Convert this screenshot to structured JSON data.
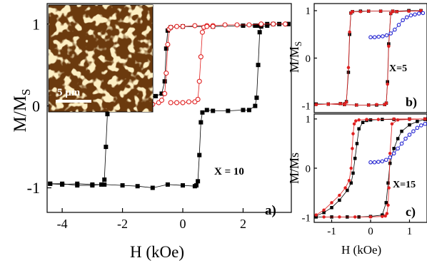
{
  "chart_data": [
    {
      "id": "a",
      "type": "scatter",
      "panel_label": "a)",
      "annotation": "X = 10",
      "xlabel": "H (kOe)",
      "ylabel": "M/M",
      "ylabel_sub": "S",
      "xlim": [
        -4.5,
        3.6
      ],
      "ylim": [
        -1.3,
        1.25
      ],
      "xticks": [
        -4,
        -2,
        0,
        2
      ],
      "xtick_labels": [
        "-4",
        "-2",
        "0",
        "2"
      ],
      "yticks": [
        -1,
        0,
        1
      ],
      "ytick_labels": [
        "-1",
        "0",
        "1"
      ],
      "inset": {
        "description": "AFM",
        "scale_bar_label": "5 μm"
      },
      "series": [
        {
          "style": "filled-square",
          "color": "#000000",
          "x": [
            -4.4,
            -4.0,
            -3.5,
            -3.0,
            -2.7,
            -2.6,
            -2.55,
            -2.5,
            -2.45,
            -2.4,
            -2.2,
            -2.0,
            -1.5,
            -1.2,
            -0.9,
            -0.7,
            -0.6,
            -0.55,
            -0.5,
            -0.4,
            0,
            1,
            2,
            2.4,
            2.5,
            2.55,
            2.6,
            2.8,
            3.2,
            3.5
          ],
          "y": [
            -0.95,
            -0.95,
            -0.97,
            -0.97,
            -0.96,
            -0.9,
            -0.5,
            -0.1,
            0.03,
            0.06,
            0.06,
            0.06,
            0.05,
            0.1,
            0.12,
            0.15,
            0.3,
            0.7,
            0.92,
            0.96,
            0.97,
            0.97,
            0.98,
            0.98,
            0.98,
            0.98,
            0.99,
            1.0,
            1.0,
            1.0
          ]
        },
        {
          "style": "filled-square",
          "color": "#000000",
          "x": [
            3.5,
            3.0,
            2.8,
            2.6,
            2.55,
            2.5,
            2.45,
            2.4,
            2.2,
            2.0,
            1.5,
            1.0,
            0.8,
            0.65,
            0.6,
            0.55,
            0.5,
            0.45,
            0.4,
            0,
            -0.5,
            -1.0,
            -1.5,
            -2.0,
            -2.6,
            -3.0,
            -3.5,
            -4.0,
            -4.4
          ],
          "y": [
            1.0,
            1.0,
            0.98,
            0.97,
            0.9,
            0.5,
            0.1,
            0.0,
            -0.05,
            -0.05,
            -0.06,
            -0.06,
            -0.05,
            -0.08,
            -0.2,
            -0.6,
            -0.92,
            -0.97,
            -0.98,
            -0.97,
            -0.96,
            -1.0,
            -0.98,
            -0.97,
            -0.96,
            -0.96,
            -0.95,
            -0.96,
            -0.95
          ]
        },
        {
          "style": "open-circle",
          "color": "#e02020",
          "x": [
            -1.5,
            -1.2,
            -1.0,
            -0.8,
            -0.7,
            -0.6,
            -0.55,
            -0.5,
            -0.45,
            -0.4,
            -0.2,
            0,
            0.4,
            0.8,
            1.0,
            1.4,
            1.8,
            2.2,
            2.6,
            3.0,
            3.4
          ],
          "y": [
            0.01,
            0.02,
            0.02,
            0.04,
            0.07,
            0.15,
            0.4,
            0.75,
            0.94,
            0.96,
            0.97,
            0.97,
            0.98,
            0.98,
            0.98,
            0.99,
            0.99,
            0.99,
            1.0,
            1.0,
            1.0
          ]
        },
        {
          "style": "open-circle",
          "color": "#e02020",
          "x": [
            -0.4,
            -0.2,
            0,
            0.2,
            0.4,
            0.5,
            0.55,
            0.6,
            0.65,
            0.7,
            0.8,
            1.0
          ],
          "y": [
            0.04,
            0.04,
            0.04,
            0.05,
            0.05,
            0.08,
            0.3,
            0.6,
            0.9,
            0.96,
            0.97,
            0.97
          ]
        }
      ]
    },
    {
      "id": "b",
      "type": "scatter",
      "panel_label": "b)",
      "annotation": "X=5",
      "ylabel": "M/M",
      "ylabel_sub": "S",
      "xlim": [
        -1.35,
        1.45
      ],
      "ylim": [
        -1.15,
        1.15
      ],
      "yticks": [
        -1,
        0,
        1
      ],
      "ytick_labels": [
        "-1",
        "0",
        "1"
      ],
      "series": [
        {
          "style": "filled-square",
          "color": "#000000",
          "x": [
            -1.3,
            -1.0,
            -0.7,
            -0.55,
            -0.5,
            -0.47,
            -0.44,
            -0.4,
            -0.2,
            0,
            0.3,
            0.6,
            1.0,
            1.3
          ],
          "y": [
            -0.97,
            -0.97,
            -0.96,
            -0.92,
            -0.3,
            0.5,
            0.95,
            0.98,
            0.99,
            0.99,
            0.99,
            0.99,
            1.0,
            1.0
          ]
        },
        {
          "style": "filled-square",
          "color": "#000000",
          "x": [
            1.3,
            1.0,
            0.7,
            0.55,
            0.5,
            0.47,
            0.44,
            0.4,
            0.2,
            0,
            -0.3,
            -0.6,
            -1.0,
            -1.3
          ],
          "y": [
            1.0,
            1.0,
            0.98,
            0.94,
            0.3,
            -0.5,
            -0.95,
            -0.98,
            -0.99,
            -0.99,
            -0.99,
            -0.98,
            -0.97,
            -0.97
          ]
        },
        {
          "style": "filled-circle",
          "color": "#e02020",
          "x": [
            -1.3,
            -1.0,
            -0.7,
            -0.55,
            -0.5,
            -0.47,
            -0.44,
            -0.4,
            -0.2,
            0,
            0.3,
            0.6,
            1.0,
            1.3
          ],
          "y": [
            -0.98,
            -0.97,
            -0.96,
            -0.93,
            -0.2,
            0.55,
            0.95,
            0.98,
            0.98,
            0.99,
            0.99,
            0.99,
            0.99,
            1.0
          ]
        },
        {
          "style": "filled-circle",
          "color": "#e02020",
          "x": [
            1.3,
            1.0,
            0.7,
            0.55,
            0.5,
            0.47,
            0.44,
            0.4,
            0.2,
            0,
            -0.3,
            -0.6,
            -1.0,
            -1.3
          ],
          "y": [
            0.99,
            0.99,
            0.98,
            0.94,
            0.25,
            -0.55,
            -0.95,
            -0.98,
            -0.98,
            -0.99,
            -0.99,
            -0.98,
            -0.97,
            -0.98
          ]
        },
        {
          "style": "open-circle",
          "color": "#2020d0",
          "x": [
            0.05,
            0.15,
            0.25,
            0.35,
            0.45,
            0.55,
            0.65,
            0.75,
            0.85,
            0.95,
            1.05,
            1.15,
            1.25,
            1.35
          ],
          "y": [
            0.44,
            0.44,
            0.45,
            0.46,
            0.48,
            0.52,
            0.6,
            0.7,
            0.8,
            0.86,
            0.9,
            0.92,
            0.94,
            0.95
          ]
        }
      ]
    },
    {
      "id": "c",
      "type": "scatter",
      "panel_label": "c)",
      "annotation": "X=15",
      "xlabel": "H (kOe)",
      "ylabel": "M/Ms",
      "xlim": [
        -1.45,
        1.45
      ],
      "ylim": [
        -1.1,
        1.1
      ],
      "xticks": [
        -1,
        0,
        1
      ],
      "xtick_labels": [
        "-1",
        "0",
        "1"
      ],
      "yticks": [
        -1,
        0,
        1
      ],
      "ytick_labels": [
        "-1",
        "0",
        "1"
      ],
      "series": [
        {
          "style": "filled-square",
          "color": "#000000",
          "x": [
            -1.4,
            -1.2,
            -1.0,
            -0.8,
            -0.6,
            -0.5,
            -0.45,
            -0.4,
            -0.35,
            -0.3,
            -0.2,
            -0.1,
            0,
            0.3,
            0.6,
            1.0,
            1.4
          ],
          "y": [
            -0.97,
            -0.9,
            -0.8,
            -0.65,
            -0.45,
            -0.3,
            -0.1,
            0.2,
            0.5,
            0.8,
            0.93,
            0.97,
            0.98,
            0.99,
            0.99,
            1.0,
            1.0
          ]
        },
        {
          "style": "filled-square",
          "color": "#000000",
          "x": [
            1.4,
            1.2,
            1.0,
            0.8,
            0.7,
            0.6,
            0.5,
            0.45,
            0.4,
            0.3,
            0,
            -0.3,
            -0.6,
            -1.0,
            -1.4
          ],
          "y": [
            0.99,
            0.95,
            0.88,
            0.75,
            0.6,
            0.4,
            0.1,
            -0.3,
            -0.7,
            -0.95,
            -0.98,
            -0.99,
            -0.99,
            -0.99,
            -0.99
          ]
        },
        {
          "style": "filled-circle",
          "color": "#e02020",
          "x": [
            -1.4,
            -1.2,
            -1.0,
            -0.8,
            -0.65,
            -0.55,
            -0.5,
            -0.47,
            -0.45,
            -0.42,
            -0.38,
            -0.3,
            -0.1,
            0.2,
            0.6,
            1.0,
            1.4
          ],
          "y": [
            -0.95,
            -0.85,
            -0.7,
            -0.55,
            -0.4,
            -0.25,
            0.0,
            0.4,
            0.7,
            0.9,
            0.96,
            0.98,
            0.99,
            0.99,
            1.0,
            1.0,
            1.0
          ]
        },
        {
          "style": "filled-circle",
          "color": "#e02020",
          "x": [
            1.4,
            1.0,
            0.7,
            0.55,
            0.5,
            0.47,
            0.45,
            0.42,
            0.38,
            0.3,
            0,
            -0.4,
            -0.8,
            -1.2
          ],
          "y": [
            1.0,
            0.99,
            0.98,
            0.9,
            0.3,
            -0.4,
            -0.75,
            -0.92,
            -0.97,
            -0.98,
            -0.99,
            -0.99,
            -0.99,
            -0.99
          ]
        },
        {
          "style": "open-circle",
          "color": "#2020d0",
          "x": [
            0.0,
            0.1,
            0.2,
            0.3,
            0.4,
            0.5,
            0.6,
            0.7,
            0.8,
            0.9,
            1.0,
            1.1,
            1.2,
            1.3,
            1.4
          ],
          "y": [
            0.12,
            0.12,
            0.13,
            0.14,
            0.17,
            0.22,
            0.3,
            0.4,
            0.5,
            0.6,
            0.68,
            0.75,
            0.82,
            0.87,
            0.9
          ]
        }
      ]
    }
  ]
}
